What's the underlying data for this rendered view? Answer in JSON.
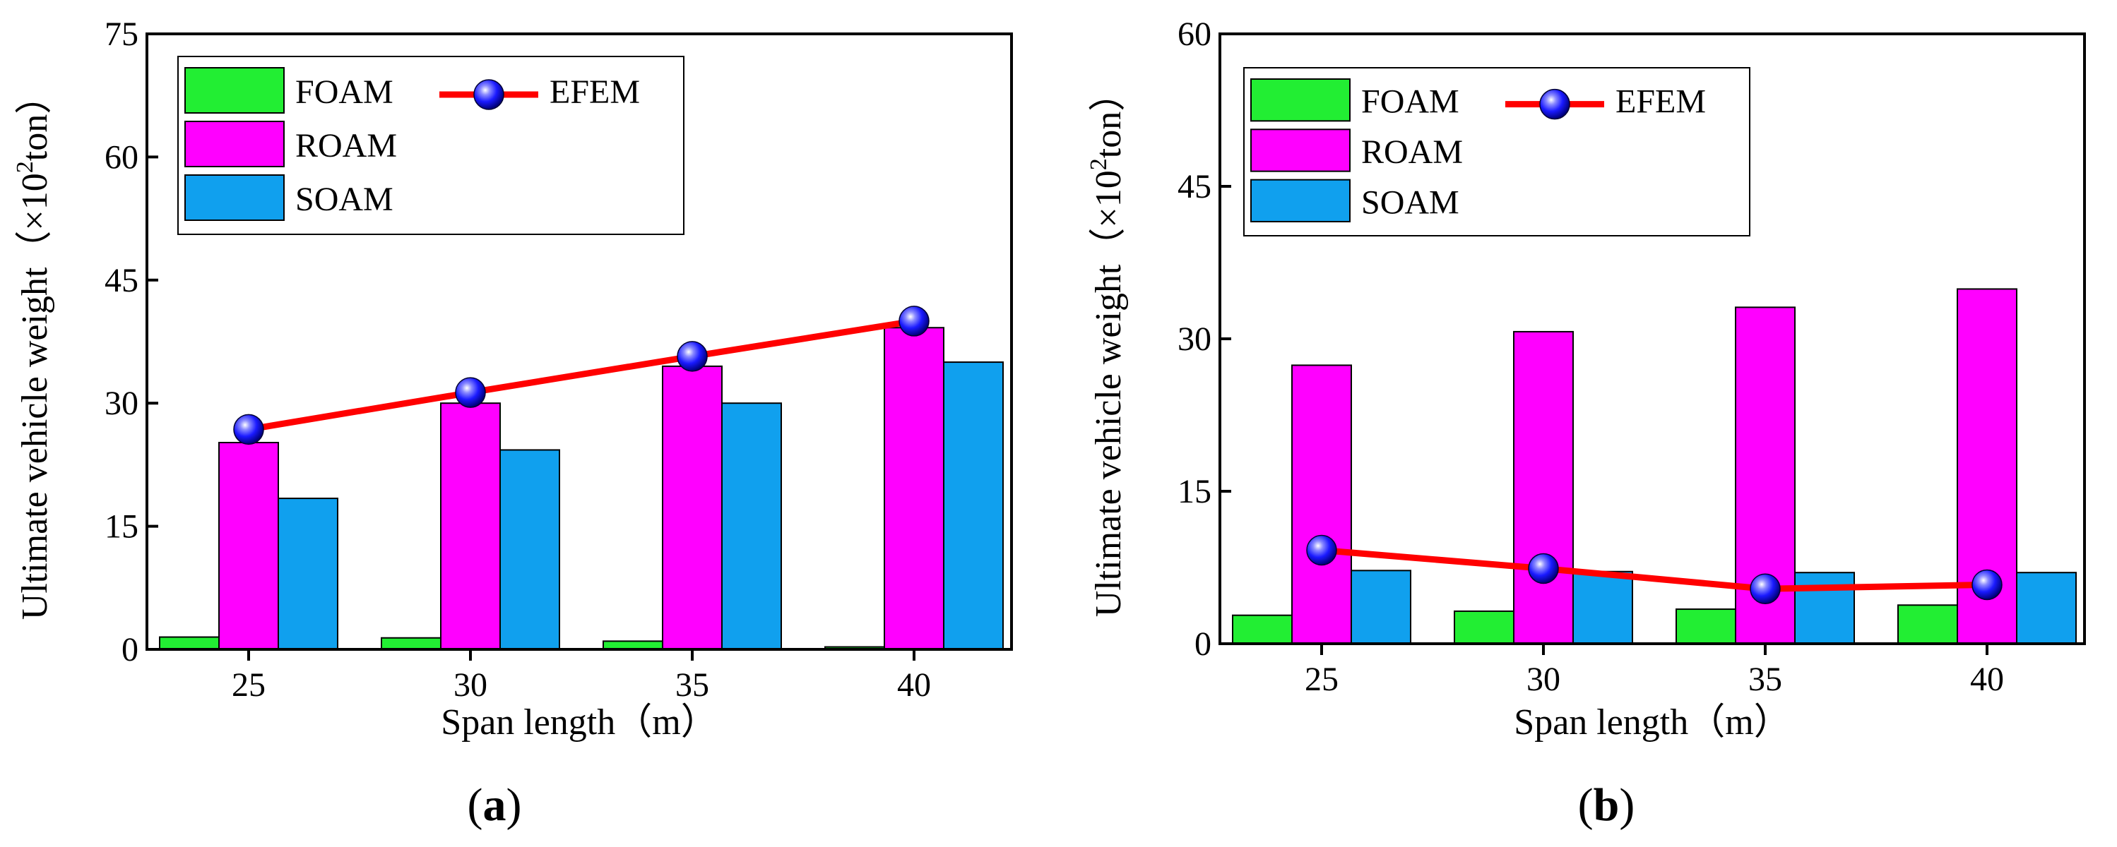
{
  "chart_data": [
    {
      "type": "bar",
      "panel_label": "a",
      "title": "",
      "xlabel": "Span length（m）",
      "ylabel_prefix": "Ultimate vehicle weight（×10",
      "ylabel_exponent": "2",
      "ylabel_suffix": "ton）",
      "categories": [
        "25",
        "30",
        "35",
        "40"
      ],
      "ylim": [
        0,
        75
      ],
      "yticks": [
        "0",
        "15",
        "30",
        "45",
        "60",
        "75"
      ],
      "series": [
        {
          "name": "FOAM",
          "kind": "bar",
          "color": "#22ee33",
          "values": [
            1.5,
            1.4,
            1.0,
            0.3
          ]
        },
        {
          "name": "ROAM",
          "kind": "bar",
          "color": "#ff00ff",
          "values": [
            25.2,
            30.0,
            34.5,
            39.2
          ]
        },
        {
          "name": "SOAM",
          "kind": "bar",
          "color": "#10a0ee",
          "values": [
            18.4,
            24.3,
            30.0,
            35.0
          ]
        },
        {
          "name": "EFEM",
          "kind": "line",
          "color": "#ff0000",
          "marker_color": "#1a1aff",
          "values": [
            26.8,
            31.3,
            35.7,
            40.0
          ]
        }
      ],
      "legend_position": "top-left"
    },
    {
      "type": "bar",
      "panel_label": "b",
      "title": "",
      "xlabel": "Span length（m）",
      "ylabel_prefix": "Ultimate vehicle weight（×10",
      "ylabel_exponent": "2",
      "ylabel_suffix": "ton）",
      "categories": [
        "25",
        "30",
        "35",
        "40"
      ],
      "ylim": [
        0,
        60
      ],
      "yticks": [
        "0",
        "15",
        "30",
        "45",
        "60"
      ],
      "series": [
        {
          "name": "FOAM",
          "kind": "bar",
          "color": "#22ee33",
          "values": [
            2.8,
            3.2,
            3.4,
            3.8
          ]
        },
        {
          "name": "ROAM",
          "kind": "bar",
          "color": "#ff00ff",
          "values": [
            27.4,
            30.7,
            33.1,
            34.9
          ]
        },
        {
          "name": "SOAM",
          "kind": "bar",
          "color": "#10a0ee",
          "values": [
            7.2,
            7.1,
            7.0,
            7.0
          ]
        },
        {
          "name": "EFEM",
          "kind": "line",
          "color": "#ff0000",
          "marker_color": "#1a1aff",
          "values": [
            9.2,
            7.4,
            5.4,
            5.8
          ]
        }
      ],
      "legend_position": "top-left"
    }
  ]
}
